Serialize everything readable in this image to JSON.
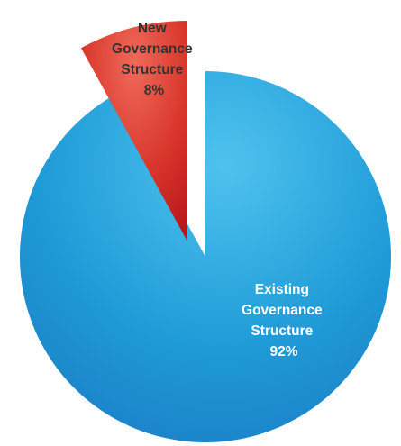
{
  "chart_data": {
    "type": "pie",
    "slices": [
      {
        "label_lines": [
          "Existing",
          "Governance",
          "Structure",
          "92%"
        ],
        "value": 92,
        "color": "#1f9bd7",
        "color_light": "#4fc3ee",
        "color_dark": "#1a79c2",
        "exploded": false
      },
      {
        "label_lines": [
          "New",
          "Governance",
          "Structure",
          "8%"
        ],
        "value": 8,
        "color": "#d9362b",
        "color_light": "#ef6a5a",
        "color_dark": "#b8151a",
        "exploded": true
      }
    ],
    "start_angle_deg": 0,
    "direction": "clockwise",
    "legend": "none",
    "title": ""
  }
}
